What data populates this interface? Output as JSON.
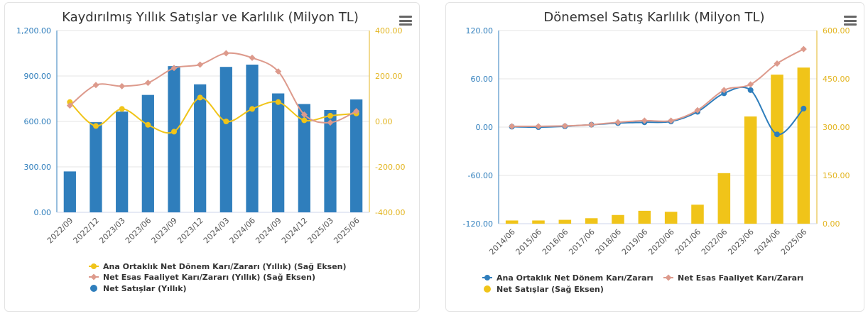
{
  "colors": {
    "blue": "#2f7ebc",
    "yellow": "#f0c419",
    "pink": "#dd9a8c",
    "grid": "#e6e6e6",
    "leftAxisText": "#2f7ebc",
    "rightAxisText": "#e3b520"
  },
  "menu_icon": "hamburger-menu-icon",
  "chart_data": [
    {
      "type": "bar",
      "title": "Kaydırılmış Yıllık Satışlar ve Karlılık (Milyon TL)",
      "categories": [
        "2022/09",
        "2022/12",
        "2023/03",
        "2023/06",
        "2023/09",
        "2023/12",
        "2024/03",
        "2024/06",
        "2024/09",
        "2024/12",
        "2025/03",
        "2025/06"
      ],
      "left_axis": {
        "ticks": [
          "0.00",
          "300.00",
          "600.00",
          "900.00",
          "1,200.00"
        ],
        "ylim": [
          0,
          1200
        ]
      },
      "right_axis": {
        "ticks": [
          "-400.00",
          "-200.00",
          "0.00",
          "200.00",
          "400.00"
        ],
        "ylim": [
          -400,
          400
        ]
      },
      "series": [
        {
          "name": "Ana Ortaklık Net Dönem Karı/Zararı (Yıllık) (Sağ Eksen)",
          "type": "line",
          "axis": "right",
          "color": "#f0c419",
          "marker": "circle",
          "values": [
            85,
            -20,
            55,
            -15,
            -45,
            105,
            0,
            55,
            85,
            5,
            25,
            35
          ]
        },
        {
          "name": "Net Esas Faaliyet Karı/Zararı (Yıllık) (Sağ Eksen)",
          "type": "line",
          "axis": "right",
          "color": "#dd9a8c",
          "marker": "diamond",
          "values": [
            70,
            160,
            155,
            170,
            235,
            250,
            300,
            280,
            220,
            30,
            -5,
            45
          ]
        },
        {
          "name": "Net Satışlar (Yıllık)",
          "type": "bar",
          "axis": "left",
          "color": "#2f7ebc",
          "marker": "circle",
          "values": [
            270,
            595,
            665,
            775,
            965,
            845,
            960,
            975,
            785,
            715,
            675,
            745
          ]
        }
      ],
      "legend_position": "bottom"
    },
    {
      "type": "bar",
      "title": "Dönemsel Satış Karlılık (Milyon TL)",
      "categories": [
        "2014/06",
        "2015/06",
        "2016/06",
        "2017/06",
        "2018/06",
        "2019/06",
        "2020/06",
        "2021/06",
        "2022/06",
        "2023/06",
        "2024/06",
        "2025/06"
      ],
      "left_axis": {
        "ticks": [
          "-120.00",
          "-60.00",
          "0.00",
          "60.00",
          "120.00"
        ],
        "ylim": [
          -120,
          120
        ]
      },
      "right_axis": {
        "ticks": [
          "0.00",
          "150.00",
          "300.00",
          "450.00",
          "600.00"
        ],
        "ylim": [
          0,
          600
        ]
      },
      "series": [
        {
          "name": "Ana Ortaklık Net Dönem Karı/Zararı",
          "type": "line",
          "axis": "left",
          "color": "#2f7ebc",
          "marker": "circle",
          "values": [
            0.5,
            0,
            1,
            3,
            5,
            6,
            7,
            19,
            42,
            46,
            -9,
            23
          ]
        },
        {
          "name": "Net Esas Faaliyet Karı/Zararı",
          "type": "line",
          "axis": "left",
          "color": "#dd9a8c",
          "marker": "diamond",
          "values": [
            1,
            1,
            1.5,
            3,
            6,
            8,
            8,
            21,
            46,
            53,
            79,
            97
          ]
        },
        {
          "name": "Net Satışlar (Sağ Eksen)",
          "type": "bar",
          "axis": "right",
          "color": "#f0c419",
          "marker": "circle",
          "values": [
            10,
            10,
            12,
            17,
            27,
            40,
            37,
            59,
            157,
            333,
            463,
            485
          ]
        }
      ],
      "legend_position": "bottom"
    }
  ]
}
